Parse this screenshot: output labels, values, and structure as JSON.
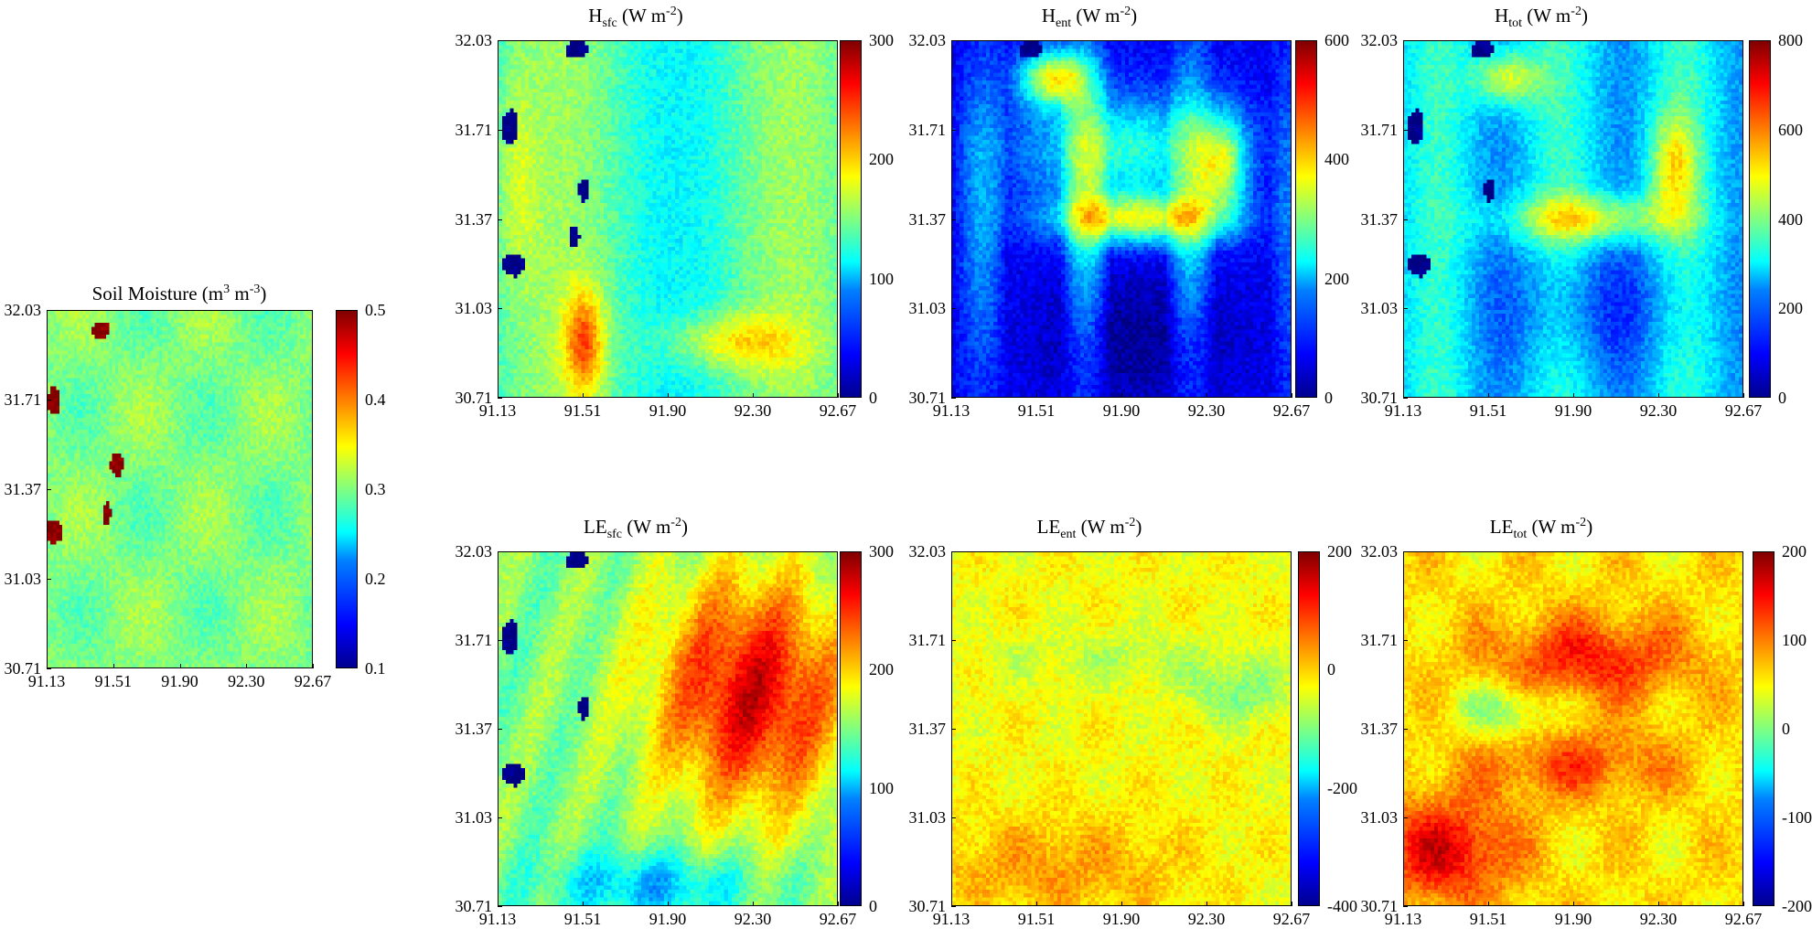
{
  "figure": {
    "x_ticks": [
      "91.13",
      "91.51",
      "91.90",
      "92.30",
      "92.67"
    ],
    "y_ticks": [
      "32.03",
      "31.71",
      "31.37",
      "31.03",
      "30.71"
    ]
  },
  "colors": {
    "colormap": "jet",
    "dark_blue": "#00008f",
    "blue": "#0000ff",
    "cyan": "#00ffff",
    "yellow": "#ffff00",
    "red": "#ff0000",
    "dark_red": "#800000"
  },
  "chart_data": [
    {
      "type": "heatmap",
      "id": "soil",
      "title_main": "Soil Moisture (m",
      "title_sup1": "3",
      "title_mid": " m",
      "title_sup2": "-3",
      "title_end": ")",
      "x_ticks": [
        "91.13",
        "91.51",
        "91.90",
        "92.30",
        "92.67"
      ],
      "y_ticks": [
        "32.03",
        "31.71",
        "31.37",
        "31.03",
        "30.71"
      ],
      "xlim": [
        91.13,
        92.67
      ],
      "ylim": [
        30.71,
        32.03
      ],
      "colorbar_range": [
        0.1,
        0.5
      ],
      "colorbar_ticks": [
        "0.5",
        "0.4",
        "0.3",
        "0.2",
        "0.1"
      ]
    },
    {
      "type": "heatmap",
      "id": "hsfc",
      "title_main": "H",
      "title_sub": "sfc",
      "title_unit": " (W m",
      "title_sup": "-2",
      "title_end": ")",
      "xlim": [
        91.13,
        92.67
      ],
      "ylim": [
        30.71,
        32.03
      ],
      "colorbar_range": [
        0,
        300
      ],
      "colorbar_ticks": [
        "300",
        "200",
        "100",
        "0"
      ]
    },
    {
      "type": "heatmap",
      "id": "hent",
      "title_main": "H",
      "title_sub": "ent",
      "title_unit": " (W m",
      "title_sup": "-2",
      "title_end": ")",
      "xlim": [
        91.13,
        92.67
      ],
      "ylim": [
        30.71,
        32.03
      ],
      "colorbar_range": [
        0,
        600
      ],
      "colorbar_ticks": [
        "600",
        "400",
        "200",
        "0"
      ]
    },
    {
      "type": "heatmap",
      "id": "htot",
      "title_main": "H",
      "title_sub": "tot",
      "title_unit": " (W m",
      "title_sup": "-2",
      "title_end": ")",
      "xlim": [
        91.13,
        92.67
      ],
      "ylim": [
        30.71,
        32.03
      ],
      "colorbar_range": [
        0,
        800
      ],
      "colorbar_ticks": [
        "800",
        "600",
        "400",
        "200",
        "0"
      ]
    },
    {
      "type": "heatmap",
      "id": "lesfc",
      "title_main": "LE",
      "title_sub": "sfc",
      "title_unit": " (W m",
      "title_sup": "-2",
      "title_end": ")",
      "xlim": [
        91.13,
        92.67
      ],
      "ylim": [
        30.71,
        32.03
      ],
      "colorbar_range": [
        0,
        300
      ],
      "colorbar_ticks": [
        "300",
        "200",
        "100",
        "0"
      ]
    },
    {
      "type": "heatmap",
      "id": "leent",
      "title_main": "LE",
      "title_sub": "ent",
      "title_unit": " (W m",
      "title_sup": "-2",
      "title_end": ")",
      "xlim": [
        91.13,
        92.67
      ],
      "ylim": [
        30.71,
        32.03
      ],
      "colorbar_range": [
        -400,
        200
      ],
      "colorbar_ticks": [
        "200",
        "0",
        "-200",
        "-400"
      ]
    },
    {
      "type": "heatmap",
      "id": "letot",
      "title_main": "LE",
      "title_sub": "tot",
      "title_unit": " (W m",
      "title_sup": "-2",
      "title_end": ")",
      "xlim": [
        91.13,
        92.67
      ],
      "ylim": [
        30.71,
        32.03
      ],
      "colorbar_range": [
        -200,
        200
      ],
      "colorbar_ticks": [
        "200",
        "100",
        "0",
        "-100",
        "-200"
      ]
    }
  ]
}
